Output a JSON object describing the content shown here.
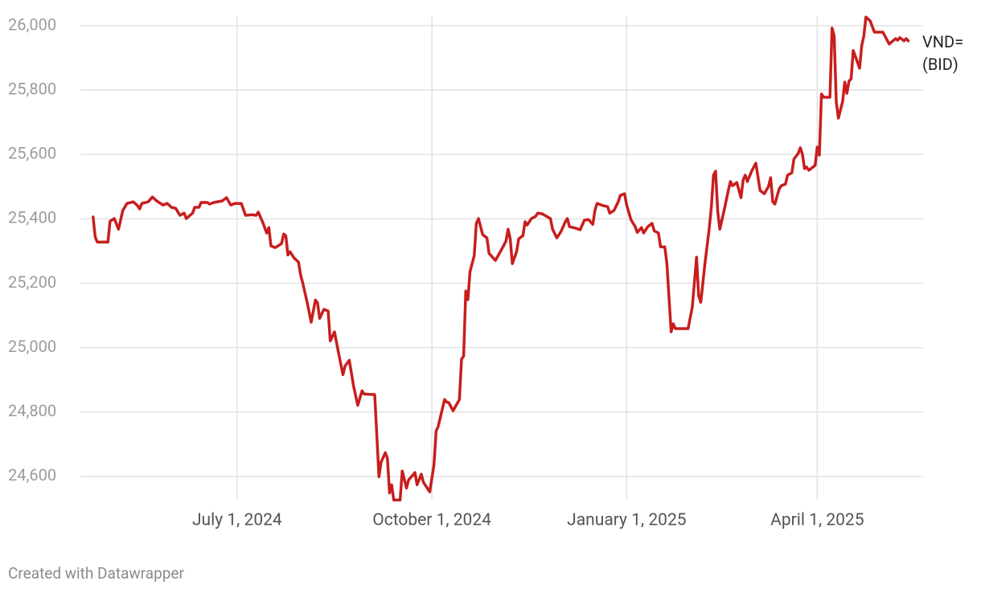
{
  "chart_data": {
    "type": "line",
    "credit": "Created with Datawrapper",
    "x": [
      "2024-04-24",
      "2024-04-25",
      "2024-04-26",
      "2024-05-01",
      "2024-05-02",
      "2024-05-04",
      "2024-05-06",
      "2024-05-08",
      "2024-05-10",
      "2024-05-13",
      "2024-05-15",
      "2024-05-16",
      "2024-05-17",
      "2024-05-20",
      "2024-05-22",
      "2024-05-24",
      "2024-05-27",
      "2024-05-29",
      "2024-05-31",
      "2024-06-02",
      "2024-06-04",
      "2024-06-06",
      "2024-06-07",
      "2024-06-10",
      "2024-06-11",
      "2024-06-13",
      "2024-06-14",
      "2024-06-17",
      "2024-06-18",
      "2024-06-20",
      "2024-06-24",
      "2024-06-26",
      "2024-06-28",
      "2024-06-30",
      "2024-07-03",
      "2024-07-05",
      "2024-07-08",
      "2024-07-10",
      "2024-07-11",
      "2024-07-13",
      "2024-07-15",
      "2024-07-16",
      "2024-07-17",
      "2024-07-19",
      "2024-07-22",
      "2024-07-23",
      "2024-07-24",
      "2024-07-25",
      "2024-07-26",
      "2024-07-28",
      "2024-07-30",
      "2024-07-31",
      "2024-08-01",
      "2024-08-03",
      "2024-08-05",
      "2024-08-07",
      "2024-08-08",
      "2024-08-09",
      "2024-08-11",
      "2024-08-13",
      "2024-08-14",
      "2024-08-16",
      "2024-08-18",
      "2024-08-20",
      "2024-08-21",
      "2024-08-23",
      "2024-08-25",
      "2024-08-27",
      "2024-08-29",
      "2024-08-30",
      "2024-09-04",
      "2024-09-06",
      "2024-09-07",
      "2024-09-09",
      "2024-09-10",
      "2024-09-11",
      "2024-09-12",
      "2024-09-13",
      "2024-09-16",
      "2024-09-17",
      "2024-09-19",
      "2024-09-20",
      "2024-09-23",
      "2024-09-24",
      "2024-09-26",
      "2024-09-27",
      "2024-09-30",
      "2024-10-02",
      "2024-10-03",
      "2024-10-04",
      "2024-10-07",
      "2024-10-08",
      "2024-10-09",
      "2024-10-11",
      "2024-10-14",
      "2024-10-15",
      "2024-10-16",
      "2024-10-17",
      "2024-10-18",
      "2024-10-19",
      "2024-10-21",
      "2024-10-22",
      "2024-10-23",
      "2024-10-25",
      "2024-10-27",
      "2024-10-28",
      "2024-10-31",
      "2024-11-03",
      "2024-11-05",
      "2024-11-06",
      "2024-11-07",
      "2024-11-08",
      "2024-11-10",
      "2024-11-11",
      "2024-11-13",
      "2024-11-14",
      "2024-11-15",
      "2024-11-17",
      "2024-11-19",
      "2024-11-20",
      "2024-11-22",
      "2024-11-26",
      "2024-11-27",
      "2024-11-29",
      "2024-12-01",
      "2024-12-03",
      "2024-12-04",
      "2024-12-05",
      "2024-12-08",
      "2024-12-10",
      "2024-12-12",
      "2024-12-14",
      "2024-12-16",
      "2024-12-17",
      "2024-12-18",
      "2024-12-21",
      "2024-12-23",
      "2024-12-24",
      "2024-12-26",
      "2024-12-28",
      "2024-12-29",
      "2024-12-31",
      "2025-01-01",
      "2025-01-03",
      "2025-01-05",
      "2025-01-06",
      "2025-01-08",
      "2025-01-09",
      "2025-01-11",
      "2025-01-13",
      "2025-01-14",
      "2025-01-16",
      "2025-01-17",
      "2025-01-19",
      "2025-01-20",
      "2025-01-22",
      "2025-01-23",
      "2025-01-24",
      "2025-01-30",
      "2025-02-01",
      "2025-02-03",
      "2025-02-04",
      "2025-02-05",
      "2025-02-07",
      "2025-02-09",
      "2025-02-10",
      "2025-02-11",
      "2025-02-12",
      "2025-02-13",
      "2025-02-14",
      "2025-02-16",
      "2025-02-18",
      "2025-02-19",
      "2025-02-20",
      "2025-02-22",
      "2025-02-24",
      "2025-02-25",
      "2025-02-26",
      "2025-02-27",
      "2025-03-01",
      "2025-03-03",
      "2025-03-04",
      "2025-03-05",
      "2025-03-07",
      "2025-03-09",
      "2025-03-10",
      "2025-03-11",
      "2025-03-12",
      "2025-03-14",
      "2025-03-15",
      "2025-03-17",
      "2025-03-18",
      "2025-03-20",
      "2025-03-21",
      "2025-03-23",
      "2025-03-24",
      "2025-03-25",
      "2025-03-26",
      "2025-03-27",
      "2025-03-28",
      "2025-03-31",
      "2025-04-01",
      "2025-04-02",
      "2025-04-03",
      "2025-04-04",
      "2025-04-07",
      "2025-04-08",
      "2025-04-09",
      "2025-04-10",
      "2025-04-11",
      "2025-04-13",
      "2025-04-14",
      "2025-04-15",
      "2025-04-16",
      "2025-04-17",
      "2025-04-18",
      "2025-04-19",
      "2025-04-21",
      "2025-04-22",
      "2025-04-23",
      "2025-04-24",
      "2025-04-26",
      "2025-04-28",
      "2025-05-02",
      "2025-05-05",
      "2025-05-08",
      "2025-05-09",
      "2025-05-10",
      "2025-05-12",
      "2025-05-13",
      "2025-05-14"
    ],
    "series": [
      {
        "name": "VND= (BID)",
        "color": "#c71e1d",
        "values": [
          25406,
          25343,
          25328,
          25328,
          25393,
          25401,
          25368,
          25426,
          25448,
          25453,
          25441,
          25431,
          25448,
          25453,
          25468,
          25456,
          25443,
          25448,
          25436,
          25433,
          25411,
          25418,
          25401,
          25418,
          25436,
          25436,
          25451,
          25451,
          25446,
          25451,
          25456,
          25466,
          25443,
          25448,
          25448,
          25411,
          25413,
          25411,
          25421,
          25391,
          25356,
          25373,
          25316,
          25311,
          25323,
          25353,
          25348,
          25288,
          25298,
          25278,
          25266,
          25226,
          25201,
          25144,
          25079,
          25148,
          25139,
          25091,
          25119,
          25114,
          25021,
          25049,
          24981,
          24916,
          24943,
          24961,
          24881,
          24821,
          24866,
          24856,
          24854,
          24599,
          24644,
          24674,
          24656,
          24549,
          24574,
          24527,
          24527,
          24617,
          24564,
          24589,
          24612,
          24574,
          24607,
          24582,
          24552,
          24637,
          24741,
          24756,
          24839,
          24831,
          24829,
          24804,
          24839,
          24964,
          24974,
          25176,
          25149,
          25236,
          25286,
          25386,
          25401,
          25351,
          25341,
          25293,
          25271,
          25306,
          25331,
          25368,
          25338,
          25261,
          25298,
          25338,
          25348,
          25391,
          25381,
          25401,
          25408,
          25418,
          25416,
          25401,
          25368,
          25341,
          25361,
          25391,
          25401,
          25376,
          25371,
          25366,
          25396,
          25398,
          25383,
          25426,
          25448,
          25441,
          25438,
          25418,
          25426,
          25453,
          25473,
          25478,
          25443,
          25398,
          25376,
          25358,
          25373,
          25356,
          25376,
          25386,
          25363,
          25356,
          25313,
          25313,
          25261,
          25049,
          25074,
          25059,
          25059,
          25126,
          25281,
          25161,
          25141,
          25263,
          25371,
          25438,
          25536,
          25548,
          25423,
          25368,
          25426,
          25488,
          25516,
          25503,
          25513,
          25466,
          25521,
          25536,
          25516,
          25548,
          25573,
          25531,
          25488,
          25478,
          25501,
          25528,
          25453,
          25446,
          25493,
          25503,
          25508,
          25536,
          25543,
          25586,
          25603,
          25621,
          25601,
          25556,
          25561,
          25551,
          25566,
          25623,
          25598,
          25788,
          25778,
          25778,
          25993,
          25968,
          25763,
          25713,
          25765,
          25825,
          25790,
          25828,
          25835,
          25923,
          25905,
          25868,
          25938,
          25968,
          26027,
          26015,
          25980,
          25980,
          25943,
          25960,
          25955,
          25963,
          25953,
          25960,
          25953
        ]
      }
    ],
    "xlim": [
      "2024-04-18",
      "2025-05-21"
    ],
    "xticks": [
      {
        "value": "2024-07-01",
        "label": "July 1, 2024"
      },
      {
        "value": "2024-10-01",
        "label": "October 1, 2024"
      },
      {
        "value": "2025-01-01",
        "label": "January 1, 2025"
      },
      {
        "value": "2025-04-01",
        "label": "April 1, 2025"
      }
    ],
    "ylim": [
      24520,
      26030
    ],
    "yticks": [
      {
        "value": 24600,
        "label": "24,600"
      },
      {
        "value": 24800,
        "label": "24,800"
      },
      {
        "value": 25000,
        "label": "25,000"
      },
      {
        "value": 25200,
        "label": "25,200"
      },
      {
        "value": 25400,
        "label": "25,400"
      },
      {
        "value": 25600,
        "label": "25,600"
      },
      {
        "value": 25800,
        "label": "25,800"
      },
      {
        "value": 26000,
        "label": "26,000"
      }
    ],
    "grid": true
  }
}
